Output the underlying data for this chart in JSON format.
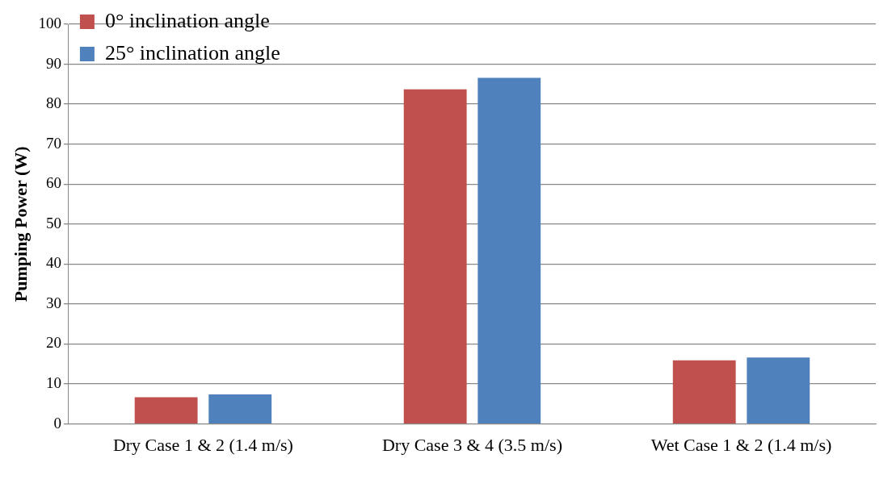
{
  "chart_data": {
    "type": "bar",
    "ylabel": "Pumping Power (W)",
    "categories": [
      "Dry Case 1 & 2 (1.4 m/s)",
      "Dry Case 3 & 4 (3.5 m/s)",
      "Wet Case 1 & 2 (1.4 m/s)"
    ],
    "series": [
      {
        "name": "0° inclination angle",
        "color": "#c0504d",
        "values": [
          6.7,
          83.7,
          15.9
        ]
      },
      {
        "name": "25° inclination angle",
        "color": "#4f81bd",
        "values": [
          7.4,
          86.6,
          16.6
        ]
      }
    ],
    "ylim": [
      0,
      100
    ],
    "yticks": [
      0,
      10,
      20,
      30,
      40,
      50,
      60,
      70,
      80,
      90,
      100
    ],
    "grid": "y",
    "legend": "top left"
  }
}
